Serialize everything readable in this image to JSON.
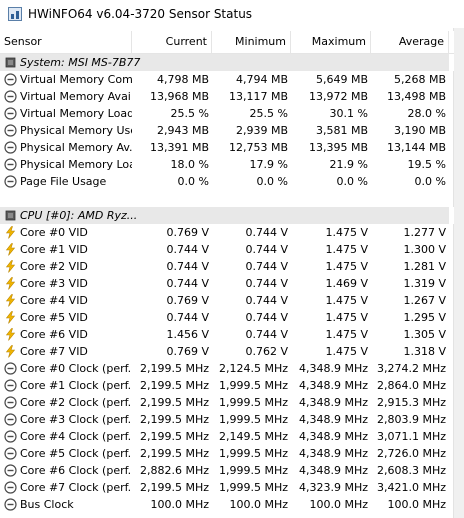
{
  "window": {
    "title": "HWiNFO64 v6.04-3720 Sensor Status"
  },
  "columns": [
    "Sensor",
    "Current",
    "Minimum",
    "Maximum",
    "Average"
  ],
  "groups": [
    {
      "label": "System: MSI MS-7B77",
      "rows": [
        {
          "icon": "gauge",
          "name": "Virtual Memory Com...",
          "current": "4,798 MB",
          "min": "4,794 MB",
          "max": "5,649 MB",
          "avg": "5,268 MB"
        },
        {
          "icon": "gauge",
          "name": "Virtual Memory Avai...",
          "current": "13,968 MB",
          "min": "13,117 MB",
          "max": "13,972 MB",
          "avg": "13,498 MB"
        },
        {
          "icon": "gauge",
          "name": "Virtual Memory Load",
          "current": "25.5 %",
          "min": "25.5 %",
          "max": "30.1 %",
          "avg": "28.0 %"
        },
        {
          "icon": "gauge",
          "name": "Physical Memory Used",
          "current": "2,943 MB",
          "min": "2,939 MB",
          "max": "3,581 MB",
          "avg": "3,190 MB"
        },
        {
          "icon": "gauge",
          "name": "Physical Memory Av...",
          "current": "13,391 MB",
          "min": "12,753 MB",
          "max": "13,395 MB",
          "avg": "13,144 MB"
        },
        {
          "icon": "gauge",
          "name": "Physical Memory Load",
          "current": "18.0 %",
          "min": "17.9 %",
          "max": "21.9 %",
          "avg": "19.5 %"
        },
        {
          "icon": "gauge",
          "name": "Page File Usage",
          "current": "0.0 %",
          "min": "0.0 %",
          "max": "0.0 %",
          "avg": "0.0 %"
        }
      ]
    },
    {
      "label": "CPU [#0]: AMD Ryz...",
      "rows": [
        {
          "icon": "bolt",
          "name": "Core #0 VID",
          "current": "0.769 V",
          "min": "0.744 V",
          "max": "1.475 V",
          "avg": "1.277 V"
        },
        {
          "icon": "bolt",
          "name": "Core #1 VID",
          "current": "0.744 V",
          "min": "0.744 V",
          "max": "1.475 V",
          "avg": "1.300 V"
        },
        {
          "icon": "bolt",
          "name": "Core #2 VID",
          "current": "0.744 V",
          "min": "0.744 V",
          "max": "1.475 V",
          "avg": "1.281 V"
        },
        {
          "icon": "bolt",
          "name": "Core #3 VID",
          "current": "0.744 V",
          "min": "0.744 V",
          "max": "1.469 V",
          "avg": "1.319 V"
        },
        {
          "icon": "bolt",
          "name": "Core #4 VID",
          "current": "0.769 V",
          "min": "0.744 V",
          "max": "1.475 V",
          "avg": "1.267 V"
        },
        {
          "icon": "bolt",
          "name": "Core #5 VID",
          "current": "0.744 V",
          "min": "0.744 V",
          "max": "1.475 V",
          "avg": "1.295 V"
        },
        {
          "icon": "bolt",
          "name": "Core #6 VID",
          "current": "1.456 V",
          "min": "0.744 V",
          "max": "1.475 V",
          "avg": "1.305 V"
        },
        {
          "icon": "bolt",
          "name": "Core #7 VID",
          "current": "0.769 V",
          "min": "0.762 V",
          "max": "1.475 V",
          "avg": "1.318 V"
        },
        {
          "icon": "gauge",
          "name": "Core #0 Clock (perf...",
          "current": "2,199.5 MHz",
          "min": "2,124.5 MHz",
          "max": "4,348.9 MHz",
          "avg": "3,274.2 MHz"
        },
        {
          "icon": "gauge",
          "name": "Core #1 Clock (perf...",
          "current": "2,199.5 MHz",
          "min": "1,999.5 MHz",
          "max": "4,348.9 MHz",
          "avg": "2,864.0 MHz"
        },
        {
          "icon": "gauge",
          "name": "Core #2 Clock (perf...",
          "current": "2,199.5 MHz",
          "min": "1,999.5 MHz",
          "max": "4,348.9 MHz",
          "avg": "2,915.3 MHz"
        },
        {
          "icon": "gauge",
          "name": "Core #3 Clock (perf...",
          "current": "2,199.5 MHz",
          "min": "1,999.5 MHz",
          "max": "4,348.9 MHz",
          "avg": "2,803.9 MHz"
        },
        {
          "icon": "gauge",
          "name": "Core #4 Clock (perf...",
          "current": "2,199.5 MHz",
          "min": "2,149.5 MHz",
          "max": "4,348.9 MHz",
          "avg": "3,071.1 MHz"
        },
        {
          "icon": "gauge",
          "name": "Core #5 Clock (perf...",
          "current": "2,199.5 MHz",
          "min": "1,999.5 MHz",
          "max": "4,348.9 MHz",
          "avg": "2,726.0 MHz"
        },
        {
          "icon": "gauge",
          "name": "Core #6 Clock (perf...",
          "current": "2,882.6 MHz",
          "min": "1,999.5 MHz",
          "max": "4,348.9 MHz",
          "avg": "2,608.3 MHz"
        },
        {
          "icon": "gauge",
          "name": "Core #7 Clock (perf...",
          "current": "2,199.5 MHz",
          "min": "1,999.5 MHz",
          "max": "4,323.9 MHz",
          "avg": "3,421.0 MHz"
        },
        {
          "icon": "gauge",
          "name": "Bus Clock",
          "current": "100.0 MHz",
          "min": "100.0 MHz",
          "max": "100.0 MHz",
          "avg": "100.0 MHz"
        }
      ]
    }
  ]
}
